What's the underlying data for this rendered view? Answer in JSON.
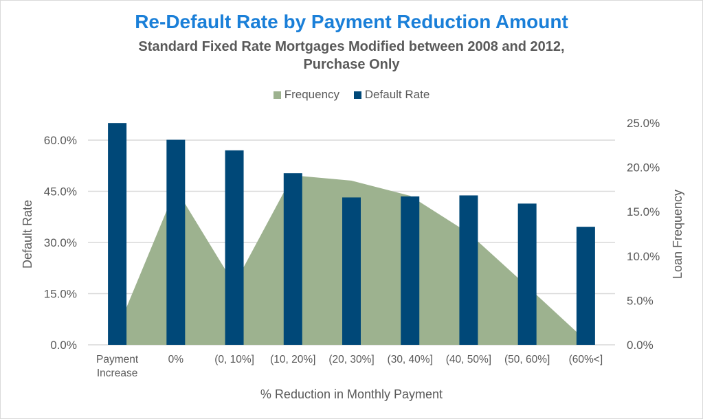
{
  "chart_data": {
    "type": "bar",
    "title": "Re-Default Rate by Payment Reduction Amount",
    "subtitle": [
      "Standard Fixed Rate Mortgages Modified between 2008 and 2012,",
      "Purchase Only"
    ],
    "xlabel": "% Reduction in Monthly Payment",
    "ylabel": "Default Rate",
    "y2label": "Loan Frequency",
    "categories": [
      "Payment|Increase",
      "0%",
      "(0, 10%]",
      "(10, 20%]",
      "(20, 30%]",
      "(30, 40%]",
      "(40, 50%]",
      "(50, 60%]",
      "(60%<]"
    ],
    "series": [
      {
        "name": "Frequency",
        "type": "area",
        "axis": "right",
        "color": "#9db28f",
        "values": [
          1.7,
          17.6,
          6.8,
          19.1,
          18.5,
          16.8,
          12.6,
          6.6,
          0.5
        ]
      },
      {
        "name": "Default Rate",
        "type": "bar",
        "axis": "left",
        "color": "#004878",
        "values": [
          65.0,
          60.1,
          57.0,
          50.3,
          43.2,
          43.5,
          43.8,
          41.4,
          34.6
        ]
      }
    ],
    "ylim": [
      0,
      60
    ],
    "yticks": [
      "0.0%",
      "15.0%",
      "30.0%",
      "45.0%",
      "60.0%"
    ],
    "y2lim": [
      0,
      25
    ],
    "y2ticks": [
      "0.0%",
      "5.0%",
      "10.0%",
      "15.0%",
      "20.0%",
      "25.0%"
    ],
    "legend": "top",
    "grid": true
  }
}
